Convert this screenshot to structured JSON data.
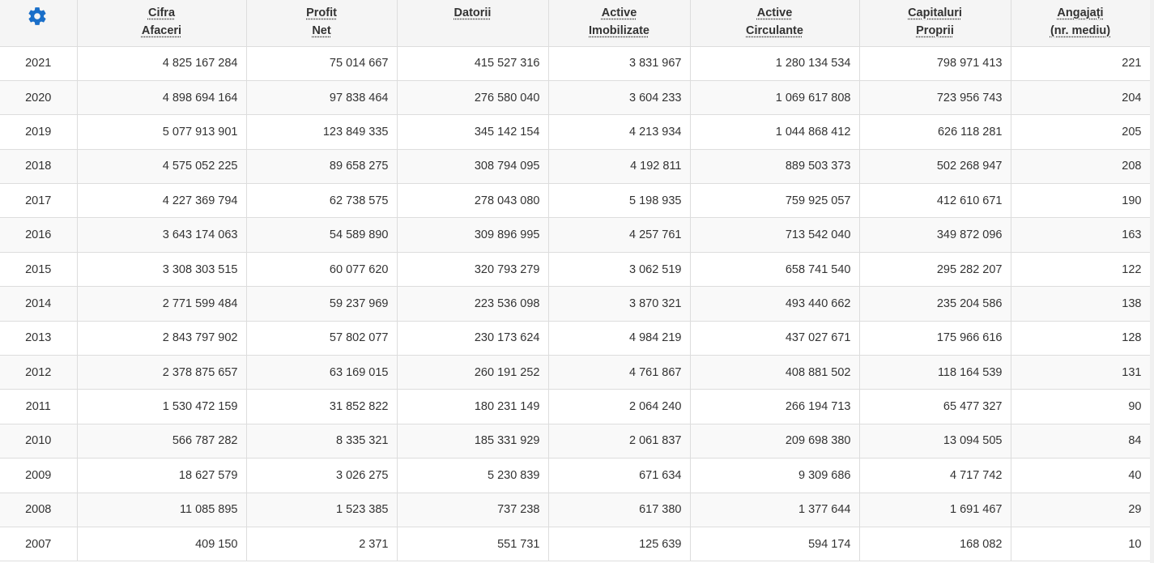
{
  "header": {
    "settings_icon": "gear-icon",
    "accent_color": "#1a6fc9",
    "columns": [
      {
        "line1": "Cifra",
        "line2": "Afaceri"
      },
      {
        "line1": "Profit",
        "line2": "Net"
      },
      {
        "line1": "Datorii",
        "line2": ""
      },
      {
        "line1": "Active",
        "line2": "Imobilizate"
      },
      {
        "line1": "Active",
        "line2": "Circulante"
      },
      {
        "line1": "Capitaluri",
        "line2": "Proprii"
      },
      {
        "line1": "Angajați",
        "line2": "(nr. mediu)"
      }
    ]
  },
  "rows": [
    {
      "year": "2021",
      "cells": [
        "4 825 167 284",
        "75 014 667",
        "415 527 316",
        "3 831 967",
        "1 280 134 534",
        "798 971 413",
        "221"
      ]
    },
    {
      "year": "2020",
      "cells": [
        "4 898 694 164",
        "97 838 464",
        "276 580 040",
        "3 604 233",
        "1 069 617 808",
        "723 956 743",
        "204"
      ]
    },
    {
      "year": "2019",
      "cells": [
        "5 077 913 901",
        "123 849 335",
        "345 142 154",
        "4 213 934",
        "1 044 868 412",
        "626 118 281",
        "205"
      ]
    },
    {
      "year": "2018",
      "cells": [
        "4 575 052 225",
        "89 658 275",
        "308 794 095",
        "4 192 811",
        "889 503 373",
        "502 268 947",
        "208"
      ]
    },
    {
      "year": "2017",
      "cells": [
        "4 227 369 794",
        "62 738 575",
        "278 043 080",
        "5 198 935",
        "759 925 057",
        "412 610 671",
        "190"
      ]
    },
    {
      "year": "2016",
      "cells": [
        "3 643 174 063",
        "54 589 890",
        "309 896 995",
        "4 257 761",
        "713 542 040",
        "349 872 096",
        "163"
      ]
    },
    {
      "year": "2015",
      "cells": [
        "3 308 303 515",
        "60 077 620",
        "320 793 279",
        "3 062 519",
        "658 741 540",
        "295 282 207",
        "122"
      ]
    },
    {
      "year": "2014",
      "cells": [
        "2 771 599 484",
        "59 237 969",
        "223 536 098",
        "3 870 321",
        "493 440 662",
        "235 204 586",
        "138"
      ]
    },
    {
      "year": "2013",
      "cells": [
        "2 843 797 902",
        "57 802 077",
        "230 173 624",
        "4 984 219",
        "437 027 671",
        "175 966 616",
        "128"
      ]
    },
    {
      "year": "2012",
      "cells": [
        "2 378 875 657",
        "63 169 015",
        "260 191 252",
        "4 761 867",
        "408 881 502",
        "118 164 539",
        "131"
      ]
    },
    {
      "year": "2011",
      "cells": [
        "1 530 472 159",
        "31 852 822",
        "180 231 149",
        "2 064 240",
        "266 194 713",
        "65 477 327",
        "90"
      ]
    },
    {
      "year": "2010",
      "cells": [
        "566 787 282",
        "8 335 321",
        "185 331 929",
        "2 061 837",
        "209 698 380",
        "13 094 505",
        "84"
      ]
    },
    {
      "year": "2009",
      "cells": [
        "18 627 579",
        "3 026 275",
        "5 230 839",
        "671 634",
        "9 309 686",
        "4 717 742",
        "40"
      ]
    },
    {
      "year": "2008",
      "cells": [
        "11 085 895",
        "1 523 385",
        "737 238",
        "617 380",
        "1 377 644",
        "1 691 467",
        "29"
      ]
    },
    {
      "year": "2007",
      "cells": [
        "409 150",
        "2 371",
        "551 731",
        "125 639",
        "594 174",
        "168 082",
        "10"
      ]
    }
  ]
}
